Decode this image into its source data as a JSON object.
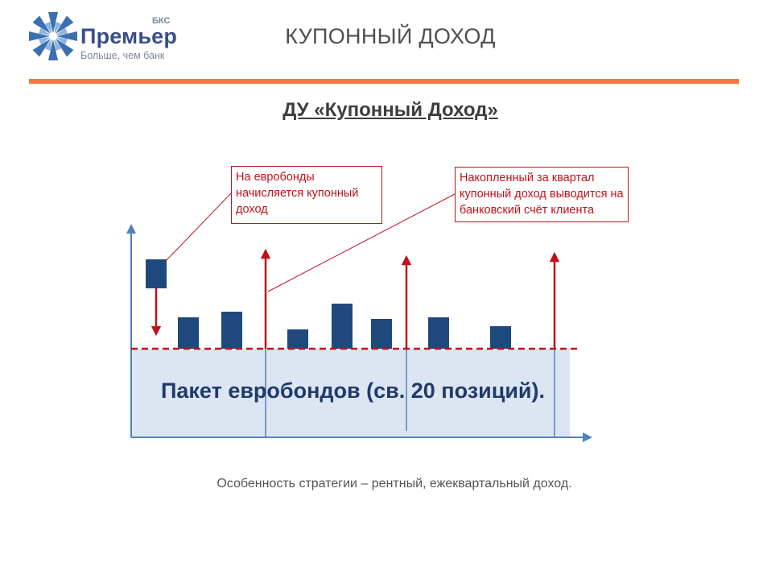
{
  "header": {
    "brand": "Премьер",
    "brand_super": "БКС",
    "slogan": "Больше, чем банк",
    "title": "КУПОННЫЙ ДОХОД"
  },
  "subtitle": "ДУ «Купонный Доход»",
  "callouts": {
    "accrual": "На евробонды начисляется купонный доход",
    "payout": "Накопленный за квартал купонный доход выводится на банковский счёт клиента"
  },
  "package_label": "Пакет евробондов (св. 20 позиций).",
  "footer_note": "Особенность стратегии – рентный, ежеквартальный доход.",
  "colors": {
    "accent_line": "#ee7a3b",
    "bar": "#1f497d",
    "arrow": "#c0121c",
    "package_fill": "#dce6f2",
    "axis": "#4f81bd"
  }
}
